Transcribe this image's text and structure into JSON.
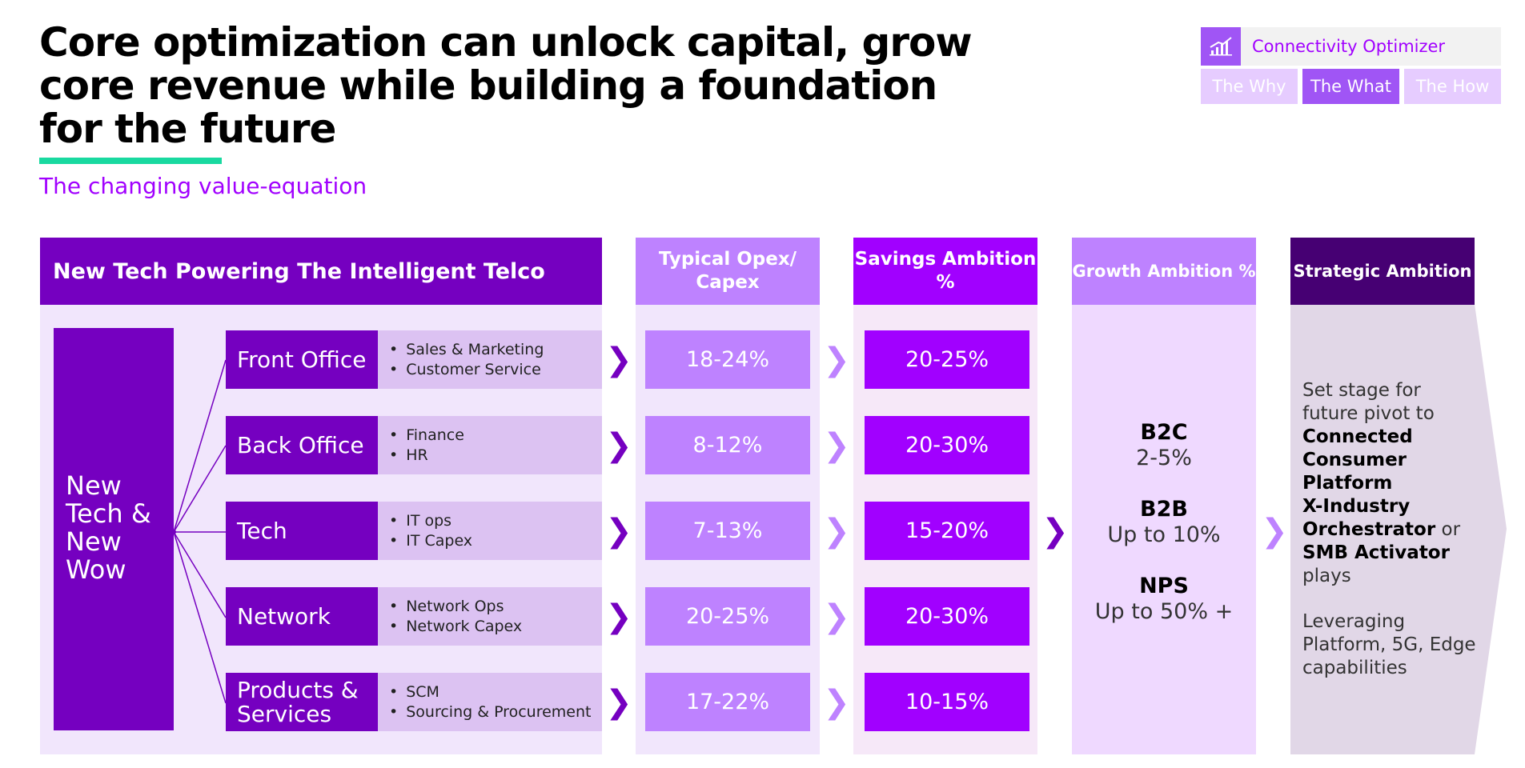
{
  "header": {
    "title_lines": [
      "Core optimization can unlock capital, grow",
      "core revenue while building a foundation",
      "for the future"
    ],
    "subtitle": "The changing value-equation"
  },
  "nav": {
    "title": "Connectivity Optimizer",
    "icon": "bar-chart-icon",
    "tabs": [
      {
        "label": "The Why",
        "active": false
      },
      {
        "label": "The What",
        "active": true
      },
      {
        "label": "The How",
        "active": false
      }
    ]
  },
  "columns": {
    "main_header": "New Tech Powering The Intelligent Telco",
    "opex_header": "Typical Opex/ Capex",
    "savings_header": "Savings Ambition %",
    "growth_header": "Growth Ambition %",
    "strategic_header": "Strategic Ambition"
  },
  "new_tech_label": "New Tech & New Wow",
  "rows": [
    {
      "label": "Front Office",
      "items": [
        "Sales & Marketing",
        "Customer Service"
      ],
      "opex": "18-24%",
      "savings": "20-25%"
    },
    {
      "label": "Back Office",
      "items": [
        "Finance",
        "HR"
      ],
      "opex": "8-12%",
      "savings": "20-30%"
    },
    {
      "label": "Tech",
      "items": [
        "IT ops",
        "IT Capex"
      ],
      "opex": "7-13%",
      "savings": "15-20%"
    },
    {
      "label": "Network",
      "items": [
        "Network Ops",
        "Network Capex"
      ],
      "opex": "20-25%",
      "savings": "20-30%"
    },
    {
      "label": "Products & Services",
      "items": [
        "SCM",
        "Sourcing & Procurement"
      ],
      "opex": "17-22%",
      "savings": "10-15%"
    }
  ],
  "growth": [
    {
      "title": "B2C",
      "value": "2-5%"
    },
    {
      "title": "B2B",
      "value": "Up to 10%"
    },
    {
      "title": "NPS",
      "value": "Up to 50% +"
    }
  ],
  "strategic": {
    "intro": "Set stage for future pivot to",
    "bold1": "Connected Consumer Platform",
    "bold2": "X-Industry Orchestrator",
    "or_text": "or",
    "bold3": "SMB Activator",
    "plays": "plays",
    "second": "Leveraging Platform, 5G, Edge capabilities"
  },
  "colors": {
    "dark_purple": "#7500c0",
    "accent_purple": "#a100ff",
    "light_purple": "#be82ff",
    "deep_purple": "#460073",
    "underline_green": "#19d9a0"
  }
}
